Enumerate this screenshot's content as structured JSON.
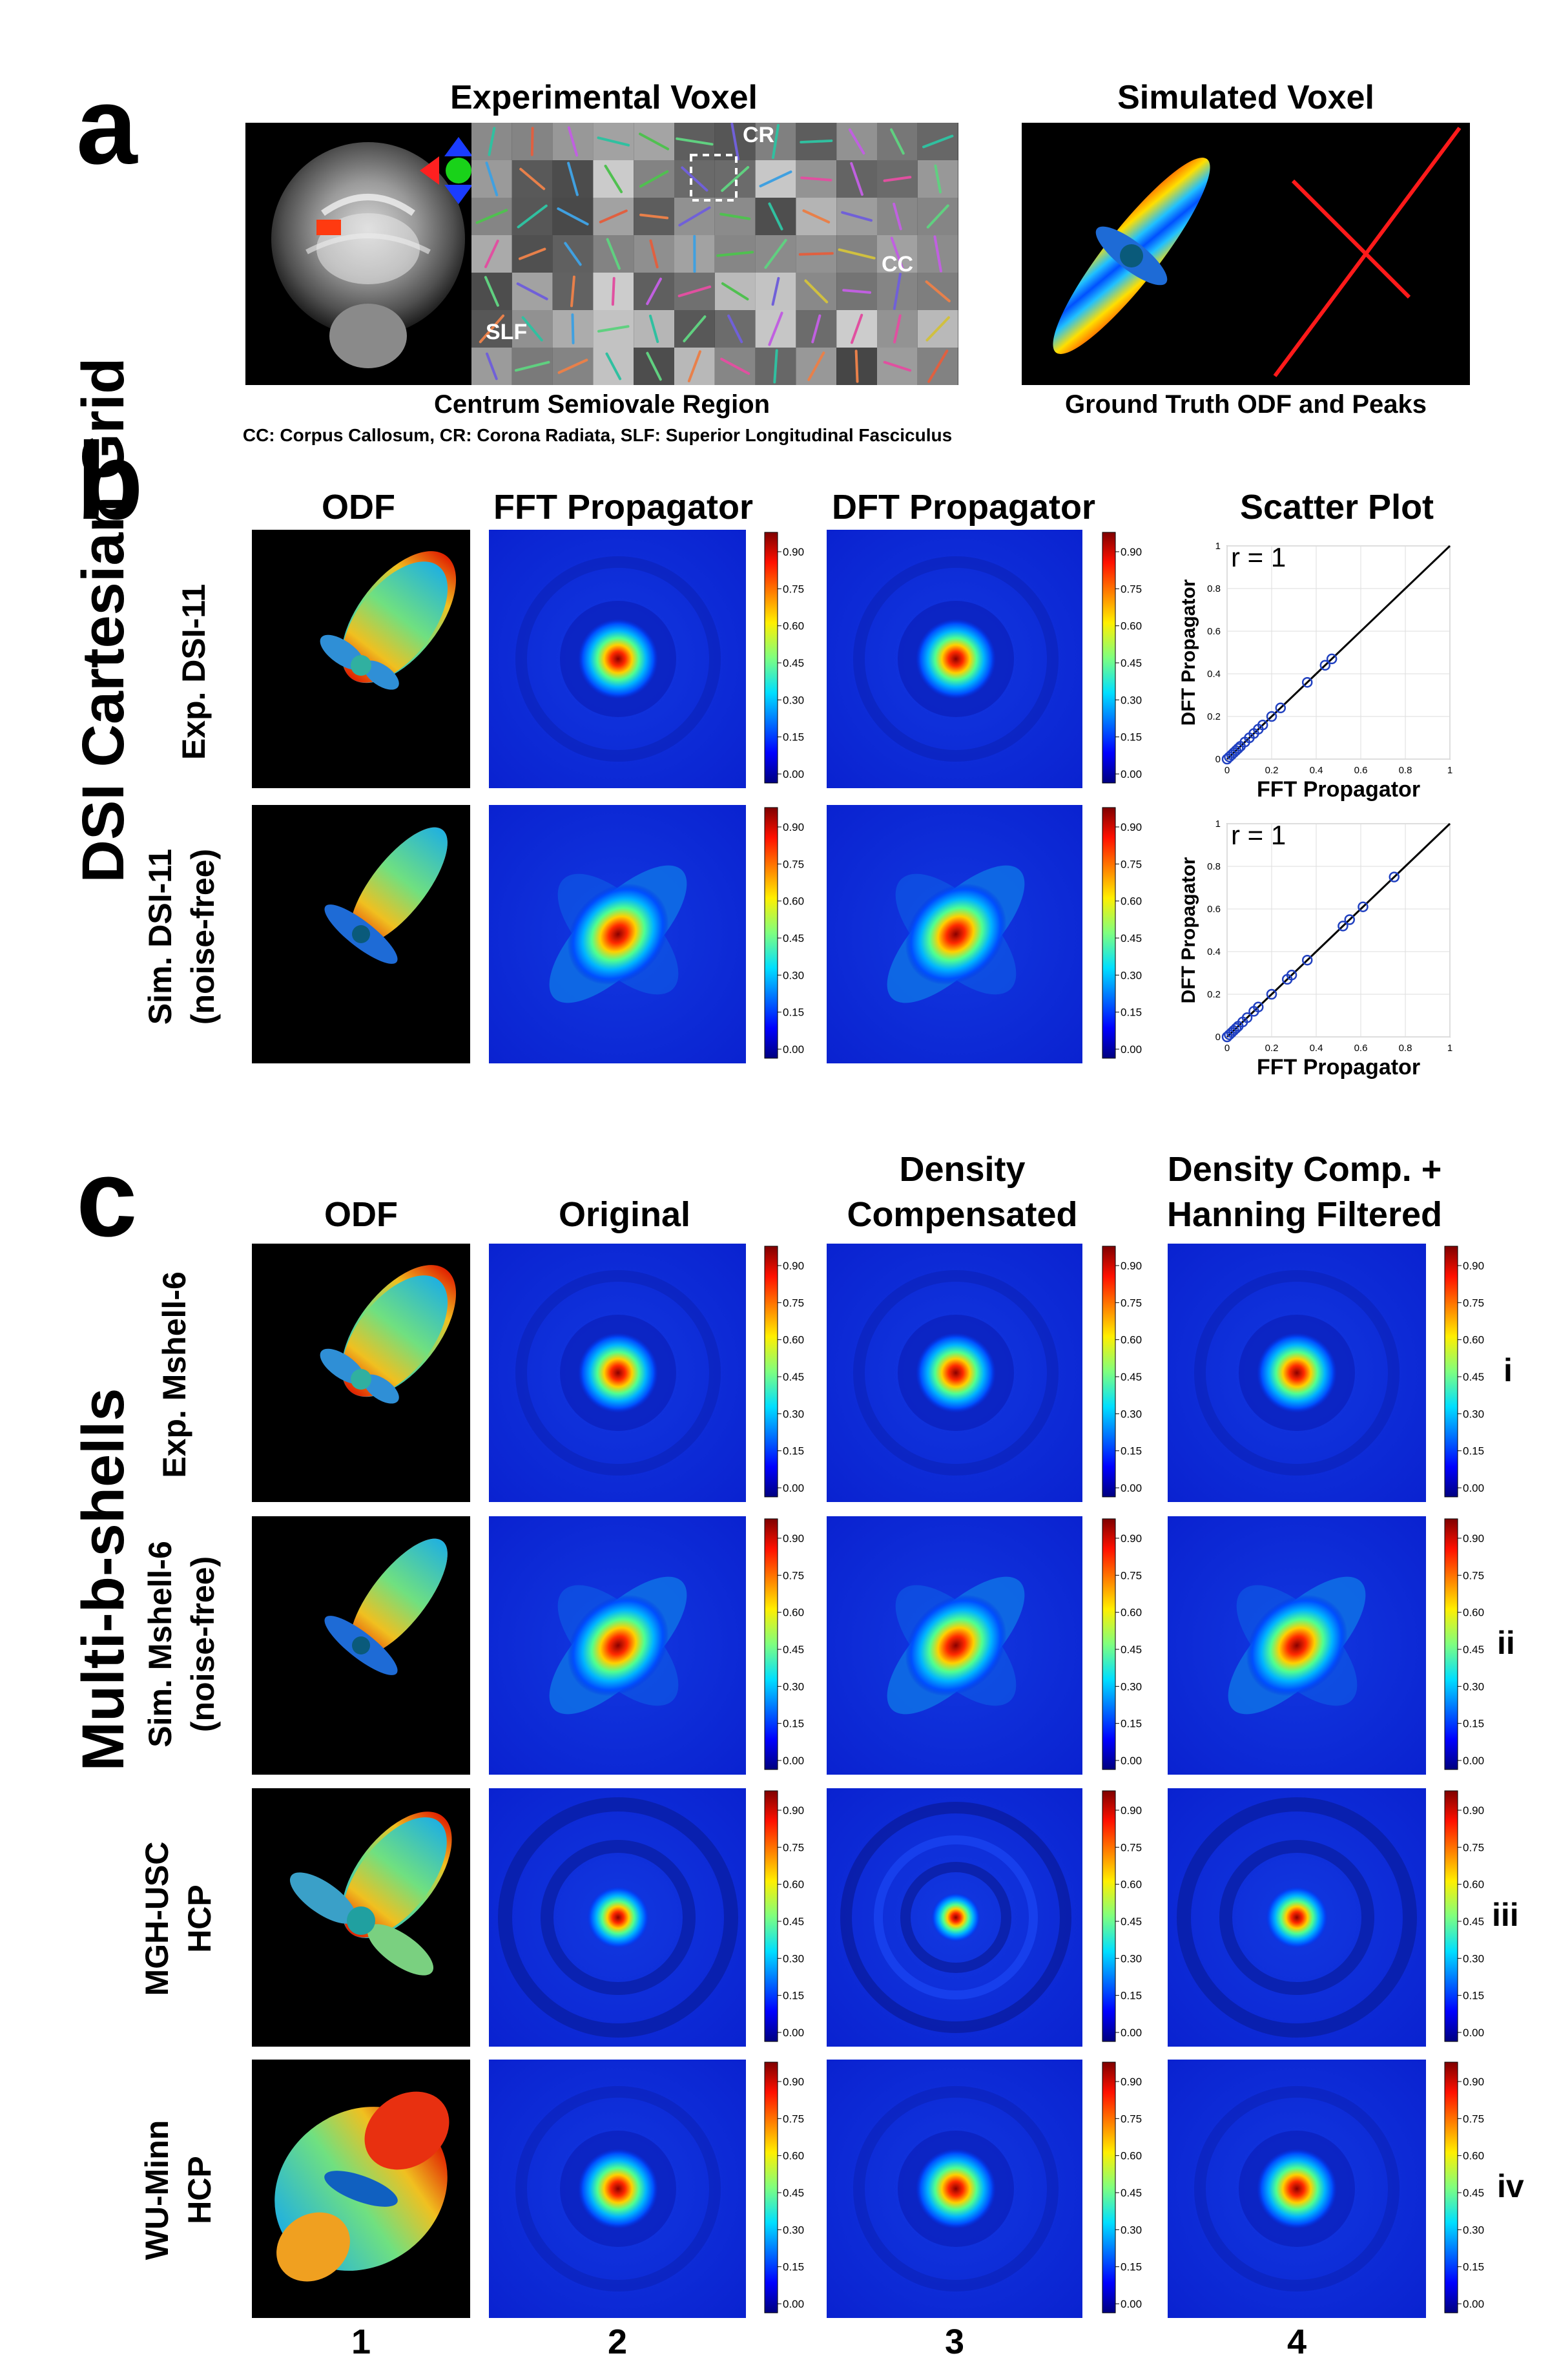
{
  "figure": {
    "panel_labels": [
      "a",
      "b",
      "c"
    ],
    "panel_a": {
      "experimental_title": "Experimental Voxel",
      "simulated_title": "Simulated Voxel",
      "region_labels": {
        "cr": "CR",
        "cc": "CC",
        "slf": "SLF"
      },
      "experimental_caption": "Centrum Semiovale Region",
      "abbreviations": "CC: Corpus Callosum, CR: Corona Radiata, SLF: Superior Longitudinal Fasciculus",
      "simulated_caption": "Ground Truth ODF and Peaks"
    },
    "panel_b": {
      "side_label": "DSI Cartesian Grid",
      "column_titles": [
        "ODF",
        "FFT Propagator",
        "DFT Propagator",
        "Scatter Plot"
      ],
      "rows": [
        {
          "label_line1": "Exp. DSI-11",
          "label_line2": ""
        },
        {
          "label_line1": "Sim. DSI-11",
          "label_line2": "(noise-free)"
        }
      ]
    },
    "panel_c": {
      "side_label": "Multi-b-shells",
      "column_titles": [
        {
          "line1": "ODF",
          "line2": ""
        },
        {
          "line1": "Original",
          "line2": ""
        },
        {
          "line1": "Density",
          "line2": "Compensated"
        },
        {
          "line1": "Density Comp. +",
          "line2": "Hanning Filtered"
        }
      ],
      "rows": [
        {
          "label_line1": "Exp. Mshell-6",
          "label_line2": "",
          "roman": "i"
        },
        {
          "label_line1": "Sim. Mshell-6",
          "label_line2": "(noise-free)",
          "roman": "ii"
        },
        {
          "label_line1": "MGH-USC",
          "label_line2": "HCP",
          "roman": "iii"
        },
        {
          "label_line1": "WU-Minn",
          "label_line2": "HCP",
          "roman": "iv"
        }
      ],
      "column_numbers": [
        "1",
        "2",
        "3",
        "4"
      ]
    },
    "colorbar_ticks": [
      "0.90",
      "0.75",
      "0.60",
      "0.45",
      "0.30",
      "0.15",
      "0.00"
    ],
    "colors": {
      "jet_dark_blue": "#00007f",
      "jet_red": "#e00000",
      "odf_background": "#000000",
      "peak_red": "#ff2020"
    }
  },
  "chart_data": [
    {
      "type": "scatter",
      "title": "r = 1",
      "xlabel": "FFT Propagator",
      "ylabel": "DFT Propagator",
      "xlim": [
        0,
        1
      ],
      "ylim": [
        0,
        1
      ],
      "x_ticks": [
        "0",
        "0.2",
        "0.4",
        "0.6",
        "0.8",
        "1"
      ],
      "y_ticks": [
        "0",
        "0.2",
        "0.4",
        "0.6",
        "0.8",
        "1"
      ],
      "x_tick_values": [
        0,
        0.2,
        0.4,
        0.6,
        0.8,
        1
      ],
      "y_tick_values": [
        0,
        0.2,
        0.4,
        0.6,
        0.8,
        1
      ],
      "grid": true,
      "identity_line": true,
      "points": [
        [
          0.0,
          0.0
        ],
        [
          0.01,
          0.01
        ],
        [
          0.02,
          0.02
        ],
        [
          0.03,
          0.03
        ],
        [
          0.04,
          0.04
        ],
        [
          0.05,
          0.05
        ],
        [
          0.06,
          0.06
        ],
        [
          0.08,
          0.08
        ],
        [
          0.1,
          0.1
        ],
        [
          0.12,
          0.12
        ],
        [
          0.14,
          0.14
        ],
        [
          0.16,
          0.16
        ],
        [
          0.2,
          0.2
        ],
        [
          0.24,
          0.24
        ],
        [
          0.36,
          0.36
        ],
        [
          0.44,
          0.44
        ],
        [
          0.47,
          0.47
        ]
      ]
    },
    {
      "type": "scatter",
      "title": "r = 1",
      "xlabel": "FFT Propagator",
      "ylabel": "DFT Propagator",
      "xlim": [
        0,
        1
      ],
      "ylim": [
        0,
        1
      ],
      "x_ticks": [
        "0",
        "0.2",
        "0.4",
        "0.6",
        "0.8",
        "1"
      ],
      "y_ticks": [
        "0",
        "0.2",
        "0.4",
        "0.6",
        "0.8",
        "1"
      ],
      "x_tick_values": [
        0,
        0.2,
        0.4,
        0.6,
        0.8,
        1
      ],
      "y_tick_values": [
        0,
        0.2,
        0.4,
        0.6,
        0.8,
        1
      ],
      "grid": true,
      "identity_line": true,
      "points": [
        [
          0.0,
          0.0
        ],
        [
          0.01,
          0.01
        ],
        [
          0.02,
          0.02
        ],
        [
          0.03,
          0.03
        ],
        [
          0.04,
          0.04
        ],
        [
          0.05,
          0.05
        ],
        [
          0.07,
          0.07
        ],
        [
          0.09,
          0.09
        ],
        [
          0.12,
          0.12
        ],
        [
          0.14,
          0.14
        ],
        [
          0.2,
          0.2
        ],
        [
          0.27,
          0.27
        ],
        [
          0.29,
          0.29
        ],
        [
          0.36,
          0.36
        ],
        [
          0.52,
          0.52
        ],
        [
          0.55,
          0.55
        ],
        [
          0.61,
          0.61
        ],
        [
          0.75,
          0.75
        ]
      ]
    }
  ]
}
